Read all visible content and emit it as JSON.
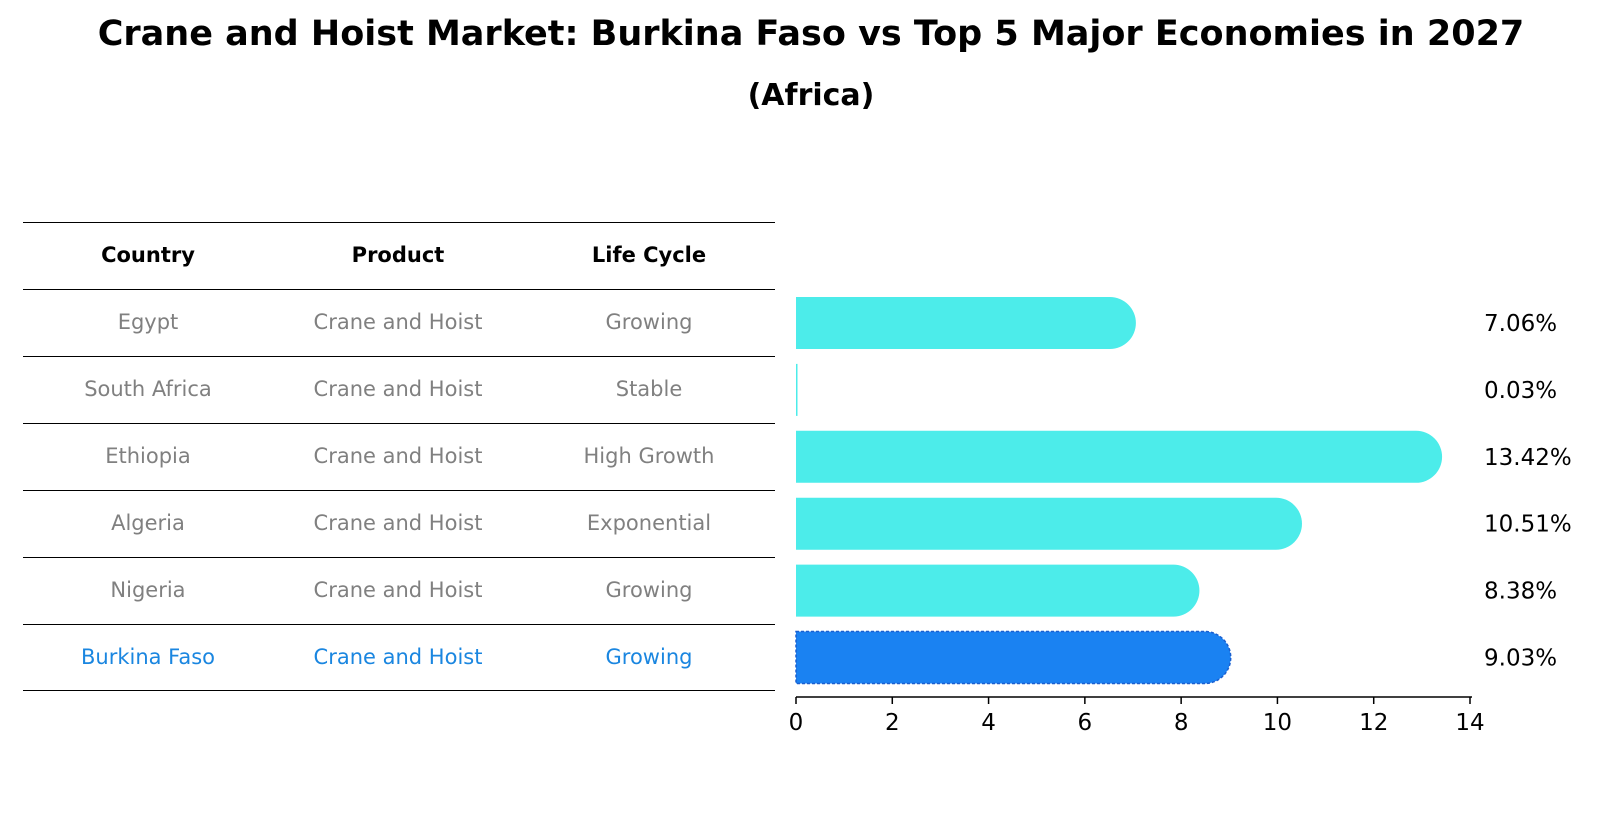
{
  "title": "Crane and Hoist Market: Burkina Faso vs Top 5 Major Economies in 2027",
  "subtitle": "(Africa)",
  "table": {
    "headers": [
      "Country",
      "Product",
      "Life Cycle"
    ],
    "rows": [
      {
        "country": "Egypt",
        "product": "Crane and Hoist",
        "life_cycle": "Growing"
      },
      {
        "country": "South Africa",
        "product": "Crane and Hoist",
        "life_cycle": "Stable"
      },
      {
        "country": "Ethiopia",
        "product": "Crane and Hoist",
        "life_cycle": "High Growth"
      },
      {
        "country": "Algeria",
        "product": "Crane and Hoist",
        "life_cycle": "Exponential"
      },
      {
        "country": "Nigeria",
        "product": "Crane and Hoist",
        "life_cycle": "Growing"
      },
      {
        "country": "Burkina Faso",
        "product": "Crane and Hoist",
        "life_cycle": "Growing"
      }
    ],
    "highlight_row": 5
  },
  "chart_data": {
    "type": "bar",
    "orientation": "horizontal",
    "categories": [
      "Egypt",
      "South Africa",
      "Ethiopia",
      "Algeria",
      "Nigeria",
      "Burkina Faso"
    ],
    "values": [
      7.06,
      0.03,
      13.42,
      10.51,
      8.38,
      9.03
    ],
    "value_labels": [
      "7.06%",
      "0.03%",
      "13.42%",
      "10.51%",
      "8.38%",
      "9.03%"
    ],
    "xlim": [
      0,
      14
    ],
    "xticks": [
      0,
      2,
      4,
      6,
      8,
      10,
      12,
      14
    ],
    "colors": {
      "default": "#4cecea",
      "highlight": "#1a82f2",
      "text_highlight": "#1a86e0",
      "text_muted": "#808080"
    },
    "highlight_index": 5,
    "grid": false
  }
}
